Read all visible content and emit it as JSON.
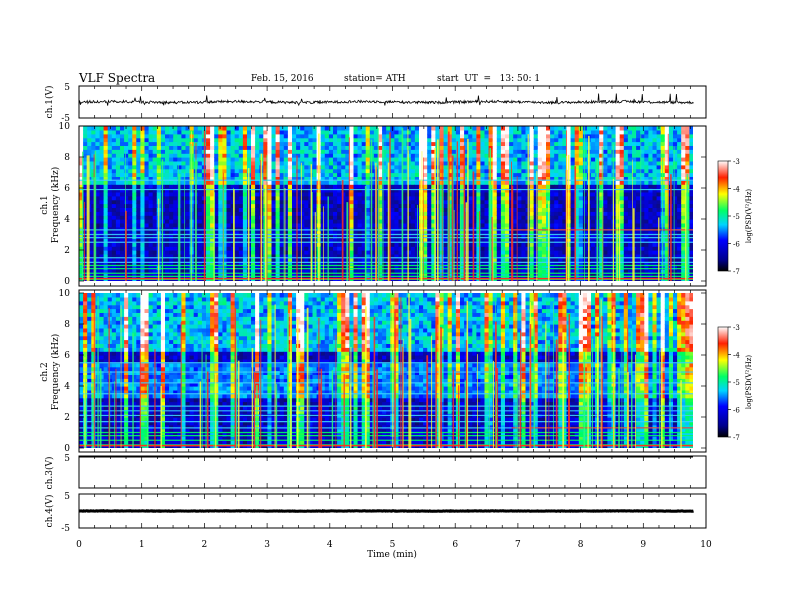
{
  "header": {
    "title": "VLF  Spectra",
    "date": "Feb. 15, 2016",
    "station": "station= ATH",
    "start": "start  UT  =   13: 50: 1"
  },
  "chart_data": [
    {
      "type": "line",
      "panel": "ch1-waveform",
      "ylabel": "ch.1(V)",
      "ylim": [
        -5,
        5
      ],
      "yticks": [
        "5",
        "-5"
      ],
      "xlim": [
        0,
        10
      ],
      "series": [
        {
          "values_desc": "noisy waveform centered near 0 V, mostly between -1 and +1 V with sparse spikes to about +2 V / -2 V",
          "baseline": 0,
          "amplitude": 1
        }
      ]
    },
    {
      "type": "heatmap",
      "panel": "ch1-spectrogram",
      "ylabel_lines": [
        "ch.1",
        "Frequency  (kHz)"
      ],
      "ylim": [
        0,
        10
      ],
      "yticks": [
        "0",
        "2",
        "4",
        "6",
        "8",
        "10"
      ],
      "xlim": [
        0,
        9.8
      ],
      "colorbar": {
        "label": "log(PSD(V²/Hz)",
        "range": [
          -7,
          -3
        ],
        "ticks": [
          "-3",
          "-4",
          "-5",
          "-6",
          "-7"
        ]
      },
      "bands_khz": [
        0.1,
        0.3,
        0.5,
        0.8,
        1.0,
        1.2,
        1.5,
        2.5,
        2.8,
        3.0,
        3.3,
        5.9,
        6.5
      ],
      "step_minute": 6.9
    },
    {
      "type": "heatmap",
      "panel": "ch2-spectrogram",
      "ylabel_lines": [
        "ch.2",
        "Frequency  (kHz)"
      ],
      "ylim": [
        0,
        10
      ],
      "yticks": [
        "0",
        "2",
        "4",
        "6",
        "8",
        "10"
      ],
      "xlim": [
        0,
        9.8
      ],
      "colorbar": {
        "label": "log(PSD(V²/Hz)",
        "range": [
          -7,
          -3
        ],
        "ticks": [
          "-3",
          "-4",
          "-5",
          "-6",
          "-7"
        ]
      },
      "bands_khz": [
        0.2,
        0.5,
        0.8,
        1.0,
        1.3,
        1.7,
        2.1,
        2.4,
        2.7,
        3.5,
        4.2,
        4.9,
        5.5
      ],
      "step_minute": 6.9
    },
    {
      "type": "line",
      "panel": "ch3-waveform",
      "ylabel": "ch.3(V)",
      "ylim": [
        -5,
        5
      ],
      "yticks": [
        "5"
      ],
      "xlim": [
        0,
        10
      ],
      "series": []
    },
    {
      "type": "line",
      "panel": "ch4-waveform",
      "ylabel": "ch.4(V)",
      "ylim": [
        -5,
        5
      ],
      "yticks": [
        "5",
        "-5"
      ],
      "xlim": [
        0,
        10
      ],
      "series": [
        {
          "values_desc": "flat trace near 0 V",
          "baseline": 0,
          "amplitude": 0.15
        }
      ]
    }
  ],
  "xaxis": {
    "label": "Time  (min)",
    "ticks": [
      "0",
      "1",
      "2",
      "3",
      "4",
      "5",
      "6",
      "7",
      "8",
      "9",
      "10"
    ],
    "range": [
      0,
      10
    ]
  },
  "colors": {
    "colormap": [
      "#000000",
      "#0d0d6e",
      "#0000ff",
      "#00d4ff",
      "#00ff55",
      "#ffff00",
      "#ff2000",
      "#ffffff"
    ],
    "trace": "#000000",
    "axis": "#000000"
  }
}
